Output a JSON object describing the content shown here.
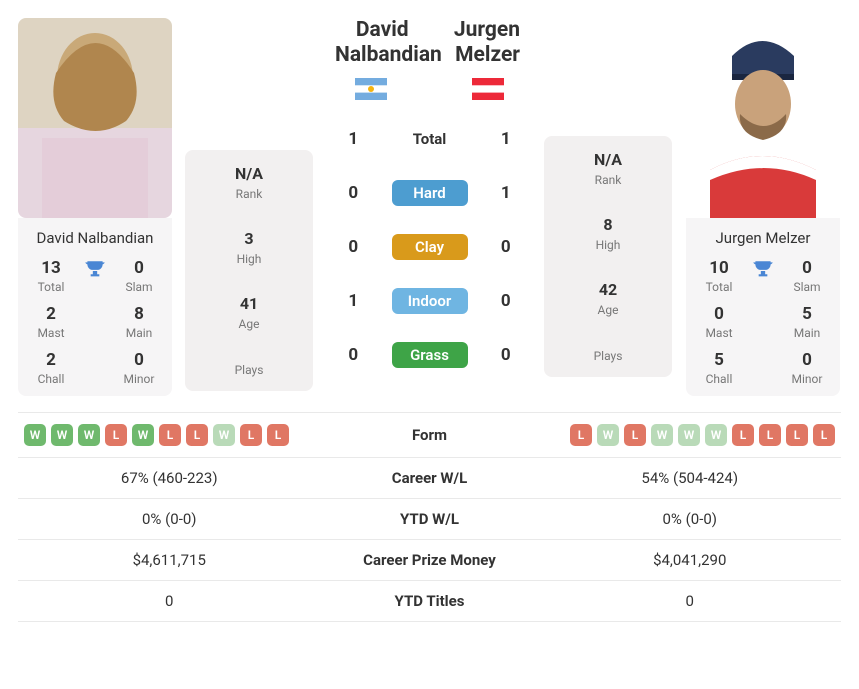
{
  "players": {
    "left": {
      "name_full": "David Nalbandian",
      "header_name": "David Nalbandian",
      "flag_svg": "arg",
      "rank": "N/A",
      "rank_lbl": "Rank",
      "high": "3",
      "high_lbl": "High",
      "age": "41",
      "age_lbl": "Age",
      "plays": "",
      "plays_lbl": "Plays",
      "titles": {
        "total": "13",
        "total_lbl": "Total",
        "slam": "0",
        "slam_lbl": "Slam",
        "mast": "2",
        "mast_lbl": "Mast",
        "main": "8",
        "main_lbl": "Main",
        "chall": "2",
        "chall_lbl": "Chall",
        "minor": "0",
        "minor_lbl": "Minor"
      }
    },
    "right": {
      "name_full": "Jurgen Melzer",
      "header_name": "Jurgen Melzer",
      "flag_svg": "aut",
      "rank": "N/A",
      "rank_lbl": "Rank",
      "high": "8",
      "high_lbl": "High",
      "age": "42",
      "age_lbl": "Age",
      "plays": "",
      "plays_lbl": "Plays",
      "titles": {
        "total": "10",
        "total_lbl": "Total",
        "slam": "0",
        "slam_lbl": "Slam",
        "mast": "0",
        "mast_lbl": "Mast",
        "main": "5",
        "main_lbl": "Main",
        "chall": "5",
        "chall_lbl": "Chall",
        "minor": "0",
        "minor_lbl": "Minor"
      }
    }
  },
  "h2h": [
    {
      "l": "1",
      "label": "Total",
      "r": "1",
      "color": null
    },
    {
      "l": "0",
      "label": "Hard",
      "r": "1",
      "color": "#4d9dd0"
    },
    {
      "l": "0",
      "label": "Clay",
      "r": "0",
      "color": "#d99a1b"
    },
    {
      "l": "1",
      "label": "Indoor",
      "r": "0",
      "color": "#6fb5e2"
    },
    {
      "l": "0",
      "label": "Grass",
      "r": "0",
      "color": "#3ea447"
    }
  ],
  "form": {
    "label": "Form",
    "left": [
      "W",
      "W",
      "W",
      "L",
      "W",
      "L",
      "L",
      "Wf",
      "L",
      "L"
    ],
    "right": [
      "L",
      "Wf",
      "L",
      "Wf",
      "Wf",
      "Wf",
      "L",
      "L",
      "L",
      "L"
    ]
  },
  "compare": [
    {
      "l": "67% (460-223)",
      "m": "Career W/L",
      "r": "54% (504-424)"
    },
    {
      "l": "0% (0-0)",
      "m": "YTD W/L",
      "r": "0% (0-0)"
    },
    {
      "l": "$4,611,715",
      "m": "Career Prize Money",
      "r": "$4,041,290"
    },
    {
      "l": "0",
      "m": "YTD Titles",
      "r": "0"
    }
  ]
}
